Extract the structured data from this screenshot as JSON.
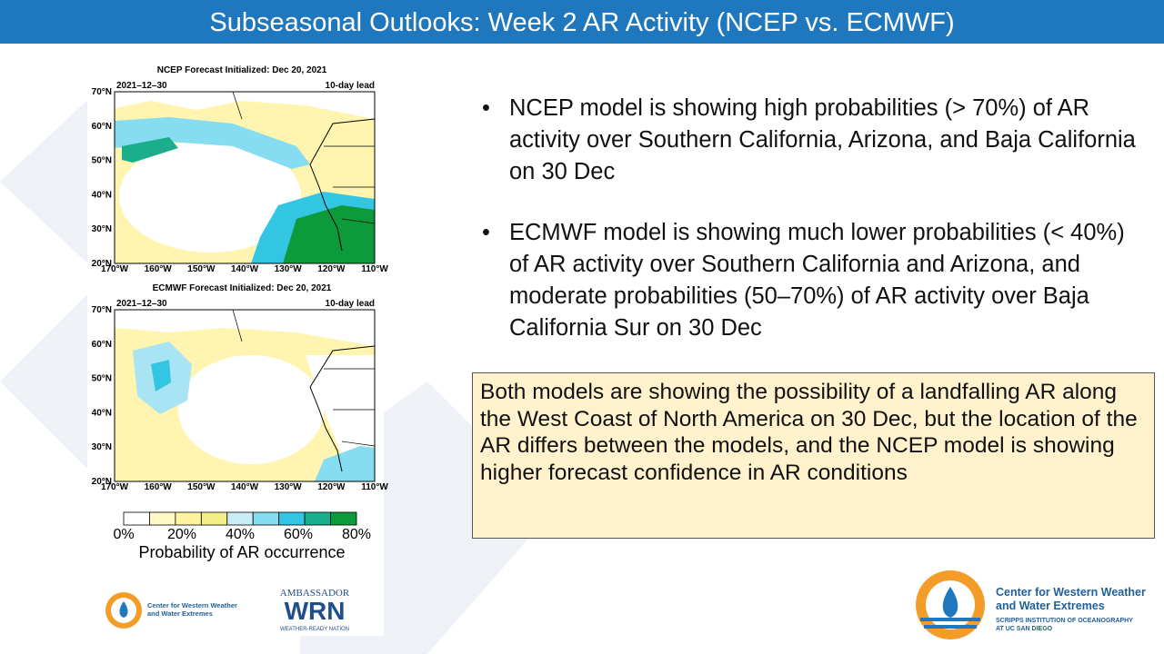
{
  "header": {
    "title": "Subseasonal Outlooks: Week 2 AR Activity (NCEP vs. ECMWF)"
  },
  "maps": [
    {
      "title": "NCEP Forecast Initialized: Dec 20, 2021",
      "date": "2021–12–30",
      "lead": "10-day lead",
      "lat_labels": [
        "70°N",
        "60°N",
        "50°N",
        "40°N",
        "30°N",
        "20°N"
      ],
      "lon_labels": [
        "170°W",
        "160°W",
        "150°W",
        "140°W",
        "130°W",
        "120°W",
        "110°W"
      ]
    },
    {
      "title": "ECMWF Forecast Initialized: Dec 20, 2021",
      "date": "2021–12–30",
      "lead": "10-day lead",
      "lat_labels": [
        "70°N",
        "60°N",
        "50°N",
        "40°N",
        "30°N",
        "20°N"
      ],
      "lon_labels": [
        "170°W",
        "160°W",
        "150°W",
        "140°W",
        "130°W",
        "120°W",
        "110°W"
      ]
    }
  ],
  "colorbar": {
    "labels": [
      "0%",
      "20%",
      "40%",
      "60%",
      "80%"
    ],
    "title": "Probability of AR occurrence",
    "colors": [
      "#ffffff",
      "#fff9c8",
      "#fff3a0",
      "#f3ef86",
      "#c9ecf6",
      "#86dcf0",
      "#33c6e2",
      "#1aae8c",
      "#0c9a3a"
    ]
  },
  "bullets": [
    "NCEP model is showing high probabilities (> 70%) of AR activity over Southern California, Arizona, and Baja California on 30 Dec",
    "ECMWF model is showing much lower probabilities (< 40%) of AR activity over Southern California and Arizona, and moderate probabilities (50–70%) of AR activity over Baja California Sur on 30 Dec"
  ],
  "summary": "Both models are showing the possibility of a landfalling AR along the West Coast of North America on 30 Dec, but the location of the AR differs between the models, and the NCEP model is showing higher forecast confidence in AR conditions",
  "logos": {
    "left": [
      "Center for Western Weather",
      "and Water Extremes"
    ],
    "wrn": [
      "AMBASSADOR",
      "WRN",
      "WEATHER-READY NATION"
    ],
    "right": [
      "Center for Western Weather",
      "and Water Extremes",
      "SCRIPPS INSTITUTION OF OCEANOGRAPHY",
      "AT UC SAN DIEGO"
    ]
  }
}
